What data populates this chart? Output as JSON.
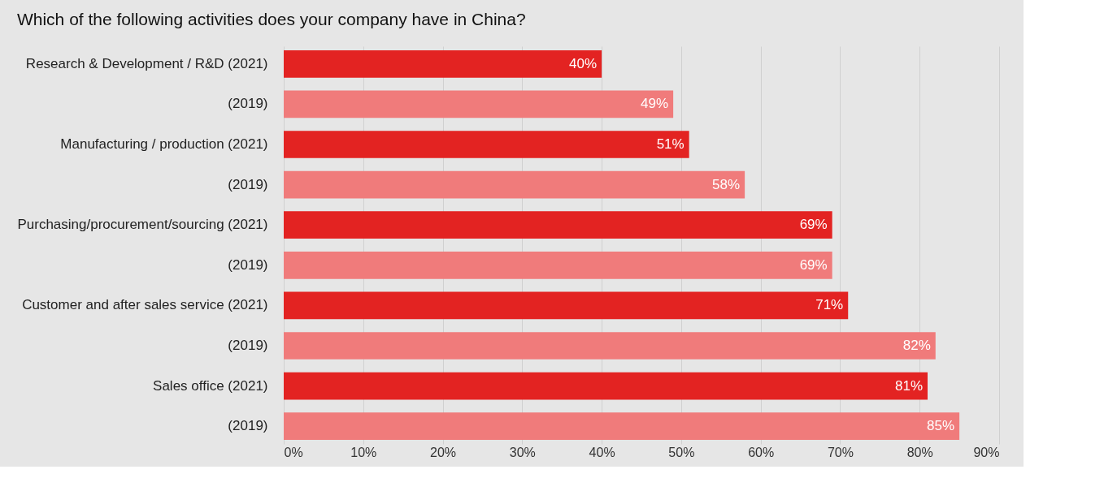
{
  "chart_data": {
    "type": "bar",
    "orientation": "horizontal",
    "title": "Which of the following activities does your company have in China?",
    "categories": [
      "Research & Development / R&D (2021)",
      "(2019)",
      "Manufacturing / production (2021)",
      "(2019)",
      "Purchasing/procurement/sourcing (2021)",
      "(2019)",
      "Customer and after sales service (2021)",
      "(2019)",
      "Sales office (2021)",
      "(2019)"
    ],
    "values": [
      40,
      49,
      51,
      58,
      69,
      69,
      71,
      82,
      81,
      85
    ],
    "colors": [
      "#e32322",
      "#f07b7b",
      "#e32322",
      "#f07b7b",
      "#e32322",
      "#f07b7b",
      "#e32322",
      "#f07b7b",
      "#e32322",
      "#f07b7b"
    ],
    "value_labels": [
      "40%",
      "49%",
      "51%",
      "58%",
      "69%",
      "69%",
      "71%",
      "82%",
      "81%",
      "85%"
    ],
    "xlim": [
      0,
      90
    ],
    "xticks": [
      {
        "value": 0,
        "label": "0%"
      },
      {
        "value": 10,
        "label": "10%"
      },
      {
        "value": 20,
        "label": "20%"
      },
      {
        "value": 30,
        "label": "30%"
      },
      {
        "value": 40,
        "label": "40%"
      },
      {
        "value": 50,
        "label": "50%"
      },
      {
        "value": 60,
        "label": "60%"
      },
      {
        "value": 70,
        "label": "70%"
      },
      {
        "value": 80,
        "label": "80%"
      },
      {
        "value": 90,
        "label": "90%"
      }
    ],
    "grid": "x"
  }
}
